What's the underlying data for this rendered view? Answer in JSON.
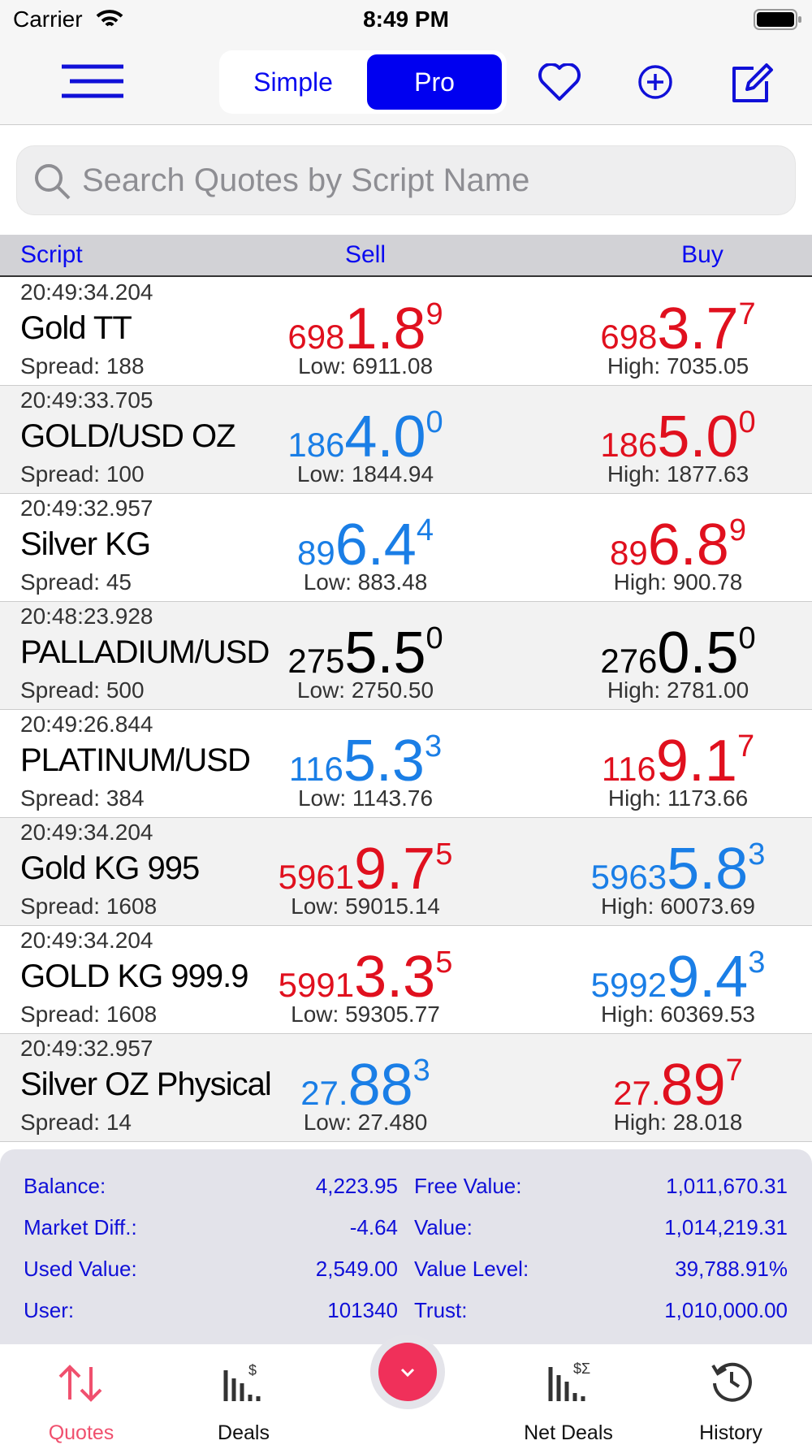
{
  "status_bar": {
    "carrier": "Carrier",
    "time": "8:49 PM"
  },
  "toolbar": {
    "segments": [
      "Simple",
      "Pro"
    ],
    "selected": 1
  },
  "search": {
    "placeholder": "Search Quotes by Script Name"
  },
  "table": {
    "headers": [
      "Script",
      "Sell",
      "Buy"
    ],
    "rows": [
      {
        "time": "20:49:34.204",
        "name": "Gold TT",
        "spread": "Spread: 188",
        "sell": {
          "prefix": "698",
          "main": "1.8",
          "sup": "9",
          "color": "#e0101e",
          "range": "Low: 6911.08"
        },
        "buy": {
          "prefix": "698",
          "main": "3.7",
          "sup": "7",
          "color": "#e0101e",
          "range": "High: 7035.05"
        }
      },
      {
        "time": "20:49:33.705",
        "name": "GOLD/USD OZ",
        "spread": "Spread: 100",
        "sell": {
          "prefix": "186",
          "main": "4.0",
          "sup": "0",
          "color": "#1a7ee6",
          "range": "Low: 1844.94"
        },
        "buy": {
          "prefix": "186",
          "main": "5.0",
          "sup": "0",
          "color": "#e0101e",
          "range": "High: 1877.63"
        }
      },
      {
        "time": "20:49:32.957",
        "name": "Silver KG",
        "spread": "Spread: 45",
        "sell": {
          "prefix": "89",
          "main": "6.4",
          "sup": "4",
          "color": "#1a7ee6",
          "range": "Low: 883.48"
        },
        "buy": {
          "prefix": "89",
          "main": "6.8",
          "sup": "9",
          "color": "#e0101e",
          "range": "High: 900.78"
        }
      },
      {
        "time": "20:48:23.928",
        "name": "PALLADIUM/USD",
        "spread": "Spread: 500",
        "sell": {
          "prefix": "275",
          "main": "5.5",
          "sup": "0",
          "color": "#000000",
          "range": "Low: 2750.50"
        },
        "buy": {
          "prefix": "276",
          "main": "0.5",
          "sup": "0",
          "color": "#000000",
          "range": "High: 2781.00"
        }
      },
      {
        "time": "20:49:26.844",
        "name": "PLATINUM/USD",
        "spread": "Spread: 384",
        "sell": {
          "prefix": "116",
          "main": "5.3",
          "sup": "3",
          "color": "#1a7ee6",
          "range": "Low: 1143.76"
        },
        "buy": {
          "prefix": "116",
          "main": "9.1",
          "sup": "7",
          "color": "#e0101e",
          "range": "High: 1173.66"
        }
      },
      {
        "time": "20:49:34.204",
        "name": "Gold KG 995",
        "spread": "Spread: 1608",
        "sell": {
          "prefix": "5961",
          "main": "9.7",
          "sup": "5",
          "color": "#e0101e",
          "range": "Low: 59015.14"
        },
        "buy": {
          "prefix": "5963",
          "main": "5.8",
          "sup": "3",
          "color": "#1a7ee6",
          "range": "High: 60073.69"
        }
      },
      {
        "time": "20:49:34.204",
        "name": "GOLD KG 999.9",
        "spread": "Spread: 1608",
        "sell": {
          "prefix": "5991",
          "main": "3.3",
          "sup": "5",
          "color": "#e0101e",
          "range": "Low: 59305.77"
        },
        "buy": {
          "prefix": "5992",
          "main": "9.4",
          "sup": "3",
          "color": "#1a7ee6",
          "range": "High: 60369.53"
        }
      },
      {
        "time": "20:49:32.957",
        "name": "Silver OZ Physical",
        "spread": "Spread: 14",
        "sell": {
          "prefix": "27.",
          "main": "88",
          "sup": "3",
          "color": "#1a7ee6",
          "range": "Low: 27.480"
        },
        "buy": {
          "prefix": "27.",
          "main": "89",
          "sup": "7",
          "color": "#e0101e",
          "range": "High: 28.018"
        }
      }
    ]
  },
  "account": {
    "rows": [
      [
        {
          "label": "Balance:",
          "value": "4,223.95"
        },
        {
          "label": "Free Value:",
          "value": "1,011,670.31"
        }
      ],
      [
        {
          "label": "Market Diff.:",
          "value": "-4.64"
        },
        {
          "label": "Value:",
          "value": "1,014,219.31"
        }
      ],
      [
        {
          "label": "Used Value:",
          "value": "2,549.00"
        },
        {
          "label": "Value Level:",
          "value": "39,788.91%"
        }
      ],
      [
        {
          "label": "User:",
          "value": "101340"
        },
        {
          "label": "Trust:",
          "value": "1,010,000.00"
        }
      ]
    ]
  },
  "tabs": [
    "Quotes",
    "Deals",
    "Net Deals",
    "History"
  ]
}
